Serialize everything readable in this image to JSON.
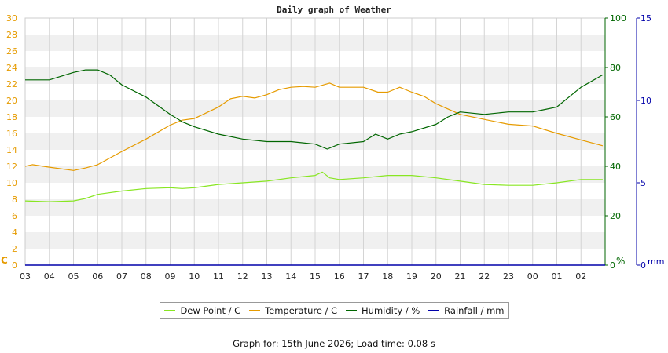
{
  "chart_data": {
    "type": "line",
    "title": "Daily graph of Weather",
    "x_ticks": [
      "03",
      "04",
      "05",
      "06",
      "07",
      "08",
      "09",
      "10",
      "11",
      "12",
      "13",
      "14",
      "15",
      "16",
      "17",
      "18",
      "19",
      "20",
      "21",
      "22",
      "23",
      "00",
      "01",
      "02"
    ],
    "y_left": {
      "label": "C",
      "range": [
        0,
        30
      ],
      "ticks": [
        0,
        2,
        4,
        6,
        8,
        10,
        12,
        14,
        16,
        18,
        20,
        22,
        24,
        26,
        28,
        30
      ],
      "color": "#e69b00"
    },
    "y_right1": {
      "label": "%",
      "range": [
        0,
        100
      ],
      "ticks": [
        0,
        20,
        40,
        60,
        80,
        100
      ],
      "color": "#006600"
    },
    "y_right2": {
      "label": "mm",
      "range": [
        0,
        15
      ],
      "ticks": [
        0,
        5,
        10,
        15
      ],
      "color": "#0000aa"
    },
    "grid": true,
    "legend_position": "bottom",
    "series": [
      {
        "name": "Dew Point / C",
        "axis": "left",
        "color": "#88e622",
        "x": [
          3,
          4,
          5,
          5.5,
          6,
          7,
          8,
          9,
          9.5,
          10,
          11,
          12,
          13,
          14,
          15,
          15.3,
          15.6,
          16,
          17,
          18,
          19,
          20,
          21,
          22,
          23,
          0,
          1,
          2,
          2.9
        ],
        "y": [
          7.8,
          7.7,
          7.8,
          8.1,
          8.6,
          9.0,
          9.3,
          9.4,
          9.3,
          9.4,
          9.8,
          10.0,
          10.2,
          10.6,
          10.9,
          11.3,
          10.6,
          10.4,
          10.6,
          10.9,
          10.9,
          10.6,
          10.2,
          9.8,
          9.7,
          9.7,
          10.0,
          10.4,
          10.4
        ]
      },
      {
        "name": "Temperature / C",
        "axis": "left",
        "color": "#e69b00",
        "x": [
          3,
          3.3,
          4,
          5,
          5.5,
          6,
          6.5,
          7,
          8,
          9,
          9.5,
          10,
          10.5,
          11,
          11.5,
          12,
          12.5,
          13,
          13.5,
          14,
          14.5,
          15,
          15.6,
          16,
          17,
          17.6,
          18,
          18.5,
          19,
          19.5,
          20,
          21,
          22,
          23,
          0,
          1,
          2,
          2.9
        ],
        "y": [
          12.0,
          12.2,
          11.9,
          11.5,
          11.8,
          12.2,
          13.0,
          13.8,
          15.3,
          17.0,
          17.6,
          17.8,
          18.5,
          19.2,
          20.2,
          20.5,
          20.3,
          20.7,
          21.3,
          21.6,
          21.7,
          21.6,
          22.1,
          21.6,
          21.6,
          21.0,
          21.0,
          21.6,
          21.0,
          20.5,
          19.6,
          18.3,
          17.7,
          17.1,
          16.9,
          16.0,
          15.2,
          14.5
        ]
      },
      {
        "name": "Humidity / %",
        "axis": "right1",
        "color": "#006600",
        "x": [
          3,
          4,
          5,
          5.5,
          6,
          6.5,
          7,
          8,
          9,
          9.5,
          10,
          11,
          12,
          13,
          14,
          15,
          15.5,
          16,
          17,
          17.5,
          18,
          18.5,
          19,
          20,
          20.5,
          21,
          22,
          23,
          0,
          0.5,
          1,
          1.5,
          2,
          2.9
        ],
        "y": [
          75,
          75,
          78,
          79,
          79,
          77,
          73,
          68,
          61,
          58,
          56,
          53,
          51,
          50,
          50,
          49,
          47,
          49,
          50,
          53,
          51,
          53,
          54,
          57,
          60,
          62,
          61,
          62,
          62,
          63,
          64,
          68,
          72,
          77
        ]
      },
      {
        "name": "Rainfall / mm",
        "axis": "right2",
        "color": "#0000aa",
        "x": [
          3,
          2.9
        ],
        "y": [
          0,
          0
        ]
      }
    ]
  },
  "footer": "Graph for: 15th June 2026; Load time: 0.08 s"
}
